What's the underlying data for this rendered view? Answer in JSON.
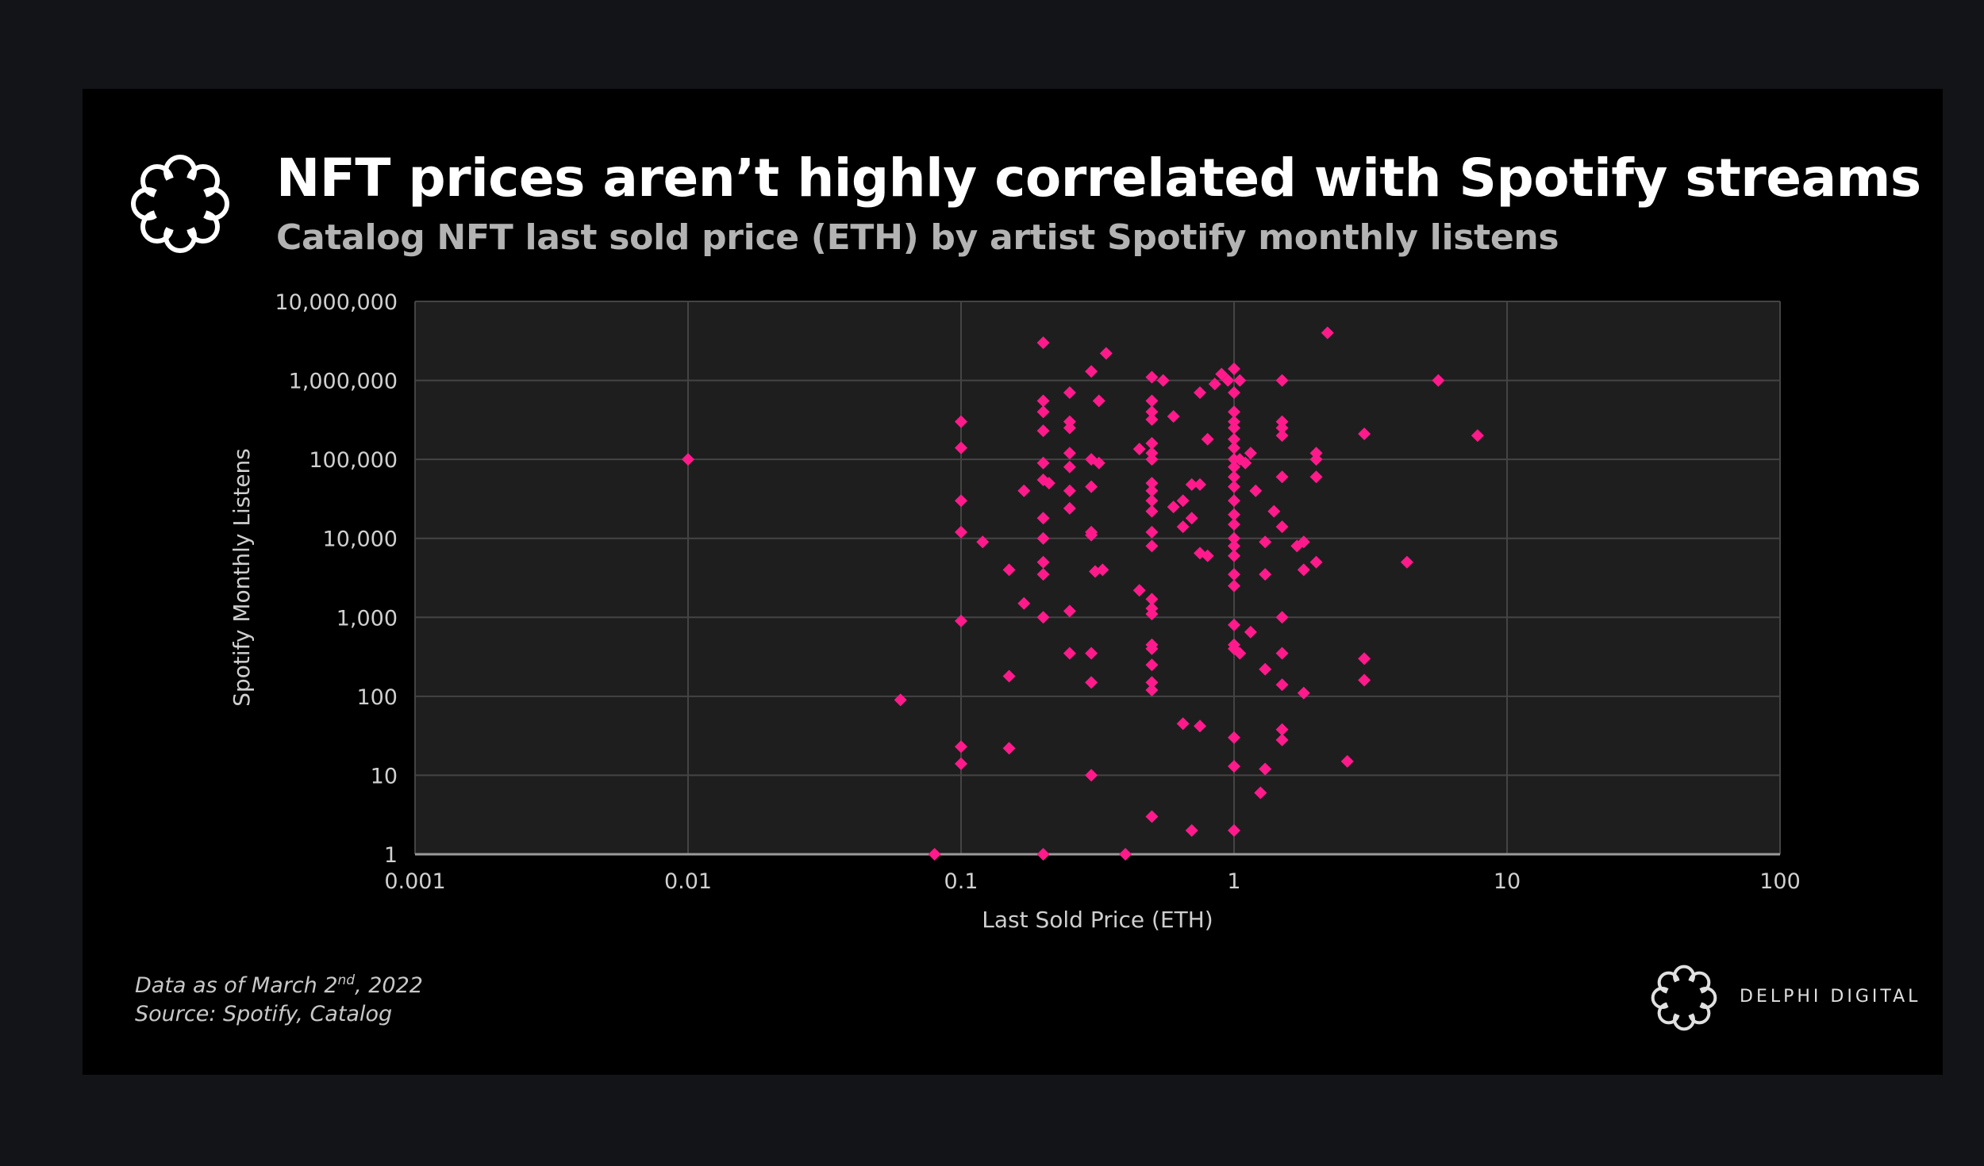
{
  "title": "NFT prices aren’t highly correlated with Spotify streams",
  "subtitle": "Catalog NFT last sold price (ETH) by artist Spotify monthly listens",
  "footnote": {
    "date_prefix": "Data as of March 2",
    "date_sup": "nd",
    "date_suffix": ", 2022",
    "source": "Source: Spotify, Catalog"
  },
  "brand": {
    "name": "DELPHI DIGITAL",
    "logo_icon": "flower-ring-logo-icon"
  },
  "colors": {
    "marker": "#ff1a8c",
    "plot_bg": "#1e1e1e",
    "grid": "#444444",
    "card_bg": "#000000"
  },
  "chart_data": {
    "type": "scatter",
    "xlabel": "Last Sold Price (ETH)",
    "ylabel": "Spotify Monthly Listens",
    "x_scale": "log",
    "y_scale": "log",
    "xlim": [
      0.001,
      100
    ],
    "ylim": [
      1,
      10000000
    ],
    "x_ticks": [
      0.001,
      0.01,
      0.1,
      1,
      10,
      100
    ],
    "x_tick_labels": [
      "0.001",
      "0.01",
      "0.1",
      "1",
      "10",
      "100"
    ],
    "y_ticks": [
      1,
      10,
      100,
      1000,
      10000,
      100000,
      1000000,
      10000000
    ],
    "y_tick_labels": [
      "1",
      "10",
      "100",
      "1,000",
      "10,000",
      "100,000",
      "1,000,000",
      "10,000,000"
    ],
    "grid": true,
    "marker": "diamond",
    "points": [
      [
        0.01,
        100000
      ],
      [
        0.06,
        90
      ],
      [
        0.08,
        1
      ],
      [
        0.1,
        300000
      ],
      [
        0.1,
        140000
      ],
      [
        0.1,
        30000
      ],
      [
        0.1,
        12000
      ],
      [
        0.1,
        900
      ],
      [
        0.1,
        23
      ],
      [
        0.1,
        14
      ],
      [
        0.12,
        9000
      ],
      [
        0.15,
        4000
      ],
      [
        0.15,
        180
      ],
      [
        0.15,
        22
      ],
      [
        0.17,
        40000
      ],
      [
        0.17,
        1500
      ],
      [
        0.2,
        3000000
      ],
      [
        0.2,
        550000
      ],
      [
        0.2,
        400000
      ],
      [
        0.2,
        230000
      ],
      [
        0.2,
        90000
      ],
      [
        0.2,
        55000
      ],
      [
        0.2,
        18000
      ],
      [
        0.2,
        10000
      ],
      [
        0.2,
        5000
      ],
      [
        0.2,
        3500
      ],
      [
        0.2,
        1000
      ],
      [
        0.2,
        1
      ],
      [
        0.21,
        50000
      ],
      [
        0.25,
        700000
      ],
      [
        0.25,
        300000
      ],
      [
        0.25,
        250000
      ],
      [
        0.25,
        120000
      ],
      [
        0.25,
        80000
      ],
      [
        0.25,
        40000
      ],
      [
        0.25,
        24000
      ],
      [
        0.25,
        1200
      ],
      [
        0.25,
        350
      ],
      [
        0.3,
        1300000
      ],
      [
        0.3,
        100000
      ],
      [
        0.3,
        45000
      ],
      [
        0.3,
        12000
      ],
      [
        0.3,
        11000
      ],
      [
        0.3,
        350
      ],
      [
        0.3,
        150
      ],
      [
        0.3,
        10
      ],
      [
        0.31,
        3800
      ],
      [
        0.32,
        550000
      ],
      [
        0.32,
        90000
      ],
      [
        0.33,
        4000
      ],
      [
        0.34,
        2200000
      ],
      [
        0.4,
        1
      ],
      [
        0.45,
        135000
      ],
      [
        0.45,
        2200
      ],
      [
        0.5,
        1100000
      ],
      [
        0.5,
        550000
      ],
      [
        0.5,
        400000
      ],
      [
        0.5,
        320000
      ],
      [
        0.5,
        160000
      ],
      [
        0.5,
        120000
      ],
      [
        0.5,
        100000
      ],
      [
        0.5,
        50000
      ],
      [
        0.5,
        40000
      ],
      [
        0.5,
        30000
      ],
      [
        0.5,
        22000
      ],
      [
        0.5,
        12000
      ],
      [
        0.5,
        8000
      ],
      [
        0.5,
        1700
      ],
      [
        0.5,
        1300
      ],
      [
        0.5,
        1100
      ],
      [
        0.5,
        450
      ],
      [
        0.5,
        400
      ],
      [
        0.5,
        250
      ],
      [
        0.5,
        150
      ],
      [
        0.5,
        120
      ],
      [
        0.5,
        3
      ],
      [
        0.55,
        1000000
      ],
      [
        0.6,
        350000
      ],
      [
        0.6,
        25000
      ],
      [
        0.65,
        30000
      ],
      [
        0.65,
        14000
      ],
      [
        0.65,
        45
      ],
      [
        0.7,
        2
      ],
      [
        0.7,
        18000
      ],
      [
        0.7,
        48000
      ],
      [
        0.75,
        700000
      ],
      [
        0.75,
        48000
      ],
      [
        0.75,
        6500
      ],
      [
        0.75,
        42
      ],
      [
        0.8,
        180000
      ],
      [
        0.8,
        6000
      ],
      [
        0.85,
        900000
      ],
      [
        0.9,
        1200000
      ],
      [
        1.0,
        1400000
      ],
      [
        1.0,
        700000
      ],
      [
        1.0,
        400000
      ],
      [
        1.0,
        300000
      ],
      [
        1.0,
        250000
      ],
      [
        1.0,
        180000
      ],
      [
        1.0,
        140000
      ],
      [
        1.0,
        100000
      ],
      [
        1.0,
        80000
      ],
      [
        1.0,
        60000
      ],
      [
        1.0,
        45000
      ],
      [
        1.0,
        30000
      ],
      [
        1.0,
        20000
      ],
      [
        1.0,
        15000
      ],
      [
        1.0,
        10000
      ],
      [
        1.0,
        8000
      ],
      [
        1.0,
        6000
      ],
      [
        1.0,
        3500
      ],
      [
        1.0,
        2500
      ],
      [
        1.0,
        800
      ],
      [
        1.0,
        450
      ],
      [
        1.0,
        400
      ],
      [
        1.0,
        30
      ],
      [
        1.0,
        13
      ],
      [
        1.0,
        2
      ],
      [
        0.95,
        1000000
      ],
      [
        1.05,
        1000000
      ],
      [
        1.05,
        350
      ],
      [
        1.05,
        100000
      ],
      [
        1.1,
        90000
      ],
      [
        1.15,
        120000
      ],
      [
        1.15,
        650
      ],
      [
        1.2,
        40000
      ],
      [
        1.25,
        6
      ],
      [
        1.3,
        9000
      ],
      [
        1.3,
        3500
      ],
      [
        1.3,
        220
      ],
      [
        1.3,
        12
      ],
      [
        1.4,
        22000
      ],
      [
        1.5,
        1000000
      ],
      [
        1.5,
        300000
      ],
      [
        1.5,
        250000
      ],
      [
        1.5,
        200000
      ],
      [
        1.5,
        60000
      ],
      [
        1.5,
        14000
      ],
      [
        1.5,
        1000
      ],
      [
        1.5,
        350
      ],
      [
        1.5,
        140
      ],
      [
        1.5,
        38
      ],
      [
        1.5,
        28
      ],
      [
        1.7,
        8000
      ],
      [
        1.8,
        9000
      ],
      [
        1.8,
        4000
      ],
      [
        1.8,
        110
      ],
      [
        2.0,
        120000
      ],
      [
        2.0,
        100000
      ],
      [
        2.0,
        60000
      ],
      [
        2.0,
        5000
      ],
      [
        2.2,
        4000000
      ],
      [
        2.6,
        15
      ],
      [
        3.0,
        210000
      ],
      [
        3.0,
        300
      ],
      [
        3.0,
        160
      ],
      [
        4.3,
        5000
      ],
      [
        5.6,
        1000000
      ],
      [
        7.8,
        200000
      ]
    ]
  }
}
